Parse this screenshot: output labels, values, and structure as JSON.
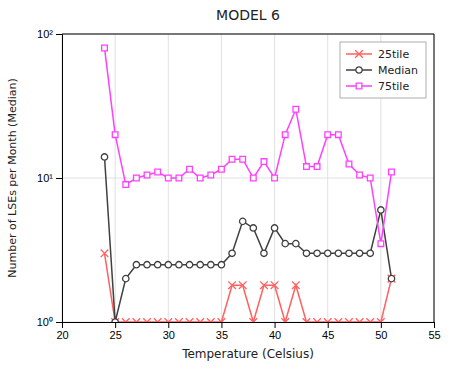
{
  "chart_data": {
    "type": "line",
    "title": "MODEL 6",
    "xlabel": "Temperature (Celsius)",
    "ylabel": "Number of LSEs per Month (Median)",
    "x": [
      24,
      25,
      26,
      27,
      28,
      29,
      30,
      31,
      32,
      33,
      34,
      35,
      36,
      37,
      38,
      39,
      40,
      41,
      42,
      43,
      44,
      45,
      46,
      47,
      48,
      49,
      50,
      51
    ],
    "series": [
      {
        "name": "25tile",
        "color": "#ff6060",
        "marker": "x",
        "values": [
          3.0,
          1.0,
          1.0,
          1.0,
          1.0,
          1.0,
          1.0,
          1.0,
          1.0,
          1.0,
          1.0,
          1.0,
          1.8,
          1.8,
          1.0,
          1.8,
          1.8,
          1.0,
          1.8,
          1.0,
          1.0,
          1.0,
          1.0,
          1.0,
          1.0,
          1.0,
          1.0,
          2.0
        ]
      },
      {
        "name": "Median",
        "color": "#404040",
        "marker": "circle",
        "values": [
          14.0,
          1.0,
          2.0,
          2.5,
          2.5,
          2.5,
          2.5,
          2.5,
          2.5,
          2.5,
          2.5,
          2.5,
          3.0,
          5.0,
          4.5,
          3.0,
          4.5,
          3.5,
          3.5,
          3.0,
          3.0,
          3.0,
          3.0,
          3.0,
          3.0,
          3.0,
          6.0,
          2.0
        ]
      },
      {
        "name": "75tile",
        "color": "#ff40ff",
        "marker": "square",
        "values": [
          80.0,
          20.0,
          9.0,
          10.0,
          10.5,
          11.0,
          10.0,
          10.0,
          11.5,
          10.0,
          10.5,
          11.5,
          13.5,
          13.5,
          10.0,
          13.0,
          10.0,
          20.0,
          30.0,
          12.0,
          12.0,
          20.0,
          20.0,
          12.5,
          10.5,
          10.0,
          3.5,
          11.0
        ]
      }
    ],
    "xlim": [
      20,
      55
    ],
    "ylim": [
      1,
      100
    ],
    "xticks": [
      20,
      25,
      30,
      35,
      40,
      45,
      50,
      55
    ],
    "yticks": [
      {
        "value": 1,
        "label": "10⁰"
      },
      {
        "value": 10,
        "label": "10¹"
      },
      {
        "value": 100,
        "label": "10²"
      }
    ],
    "log": "y",
    "grid": true,
    "legend": "upper right"
  }
}
